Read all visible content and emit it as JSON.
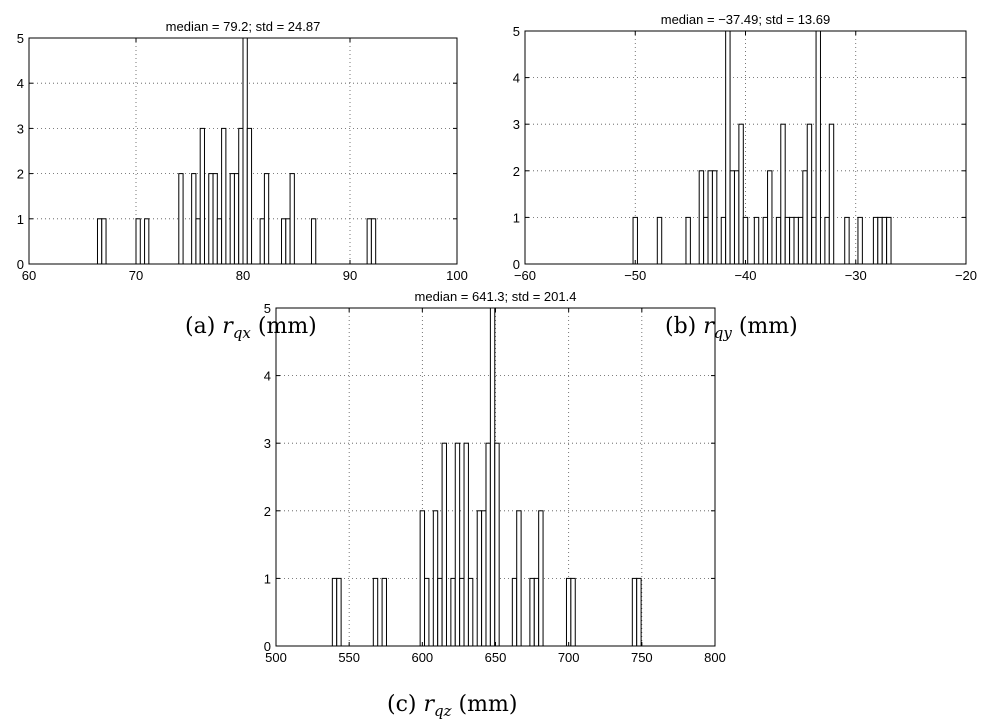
{
  "chart_data": [
    {
      "type": "bar",
      "title": "median = 79.2; std = 24.87",
      "caption": {
        "label": "(a)",
        "symbol": "r",
        "subscript": "qx",
        "unit": "(mm)"
      },
      "xlim": [
        60,
        100
      ],
      "ylim": [
        0,
        5
      ],
      "xticks": [
        "60",
        "70",
        "80",
        "90",
        "100"
      ],
      "yticks": [
        "0",
        "1",
        "2",
        "3",
        "4",
        "5"
      ],
      "grid": true,
      "bin_width": 0.4,
      "bins": [
        {
          "x": 66.6,
          "count": 1
        },
        {
          "x": 67.0,
          "count": 1
        },
        {
          "x": 70.2,
          "count": 1
        },
        {
          "x": 71.0,
          "count": 1
        },
        {
          "x": 74.2,
          "count": 2
        },
        {
          "x": 75.4,
          "count": 2
        },
        {
          "x": 75.8,
          "count": 1
        },
        {
          "x": 76.2,
          "count": 3
        },
        {
          "x": 77.0,
          "count": 2
        },
        {
          "x": 77.4,
          "count": 2
        },
        {
          "x": 77.8,
          "count": 1
        },
        {
          "x": 78.2,
          "count": 3
        },
        {
          "x": 79.0,
          "count": 2
        },
        {
          "x": 79.4,
          "count": 2
        },
        {
          "x": 79.8,
          "count": 3
        },
        {
          "x": 80.2,
          "count": 5
        },
        {
          "x": 80.6,
          "count": 3
        },
        {
          "x": 81.8,
          "count": 1
        },
        {
          "x": 82.2,
          "count": 2
        },
        {
          "x": 83.8,
          "count": 1
        },
        {
          "x": 84.2,
          "count": 1
        },
        {
          "x": 84.6,
          "count": 2
        },
        {
          "x": 86.6,
          "count": 1
        },
        {
          "x": 91.8,
          "count": 1
        },
        {
          "x": 92.2,
          "count": 1
        }
      ]
    },
    {
      "type": "bar",
      "title": "median = −37.49; std = 13.69",
      "caption": {
        "label": "(b)",
        "symbol": "r",
        "subscript": "qy",
        "unit": "(mm)"
      },
      "xlim": [
        -60,
        -20
      ],
      "ylim": [
        0,
        5
      ],
      "xticks": [
        "−60",
        "−50",
        "−40",
        "−30",
        "−20"
      ],
      "yticks": [
        "0",
        "1",
        "2",
        "3",
        "4",
        "5"
      ],
      "grid": true,
      "bin_width": 0.4,
      "bins": [
        {
          "x": -50.0,
          "count": 1
        },
        {
          "x": -47.8,
          "count": 1
        },
        {
          "x": -45.2,
          "count": 1
        },
        {
          "x": -44.0,
          "count": 2
        },
        {
          "x": -43.6,
          "count": 1
        },
        {
          "x": -43.2,
          "count": 2
        },
        {
          "x": -42.8,
          "count": 2
        },
        {
          "x": -42.0,
          "count": 1
        },
        {
          "x": -41.6,
          "count": 5
        },
        {
          "x": -41.2,
          "count": 2
        },
        {
          "x": -40.8,
          "count": 2
        },
        {
          "x": -40.4,
          "count": 3
        },
        {
          "x": -40.0,
          "count": 1
        },
        {
          "x": -39.0,
          "count": 1
        },
        {
          "x": -38.2,
          "count": 1
        },
        {
          "x": -37.8,
          "count": 2
        },
        {
          "x": -37.0,
          "count": 1
        },
        {
          "x": -36.6,
          "count": 3
        },
        {
          "x": -36.2,
          "count": 1
        },
        {
          "x": -35.8,
          "count": 1
        },
        {
          "x": -35.4,
          "count": 1
        },
        {
          "x": -35.0,
          "count": 1
        },
        {
          "x": -34.6,
          "count": 2
        },
        {
          "x": -34.2,
          "count": 3
        },
        {
          "x": -33.8,
          "count": 1
        },
        {
          "x": -33.4,
          "count": 5
        },
        {
          "x": -32.6,
          "count": 1
        },
        {
          "x": -32.2,
          "count": 3
        },
        {
          "x": -30.8,
          "count": 1
        },
        {
          "x": -29.6,
          "count": 1
        },
        {
          "x": -28.2,
          "count": 1
        },
        {
          "x": -27.8,
          "count": 1
        },
        {
          "x": -27.4,
          "count": 1
        },
        {
          "x": -27.0,
          "count": 1
        }
      ]
    },
    {
      "type": "bar",
      "title": "median = 641.3; std = 201.4",
      "caption": {
        "label": "(c)",
        "symbol": "r",
        "subscript": "qz",
        "unit": "(mm)"
      },
      "xlim": [
        500,
        800
      ],
      "ylim": [
        0,
        5
      ],
      "xticks": [
        "500",
        "550",
        "600",
        "650",
        "700",
        "750",
        "800"
      ],
      "yticks": [
        "0",
        "1",
        "2",
        "3",
        "4",
        "5"
      ],
      "grid": true,
      "bin_width": 3,
      "bins": [
        {
          "x": 540,
          "count": 1
        },
        {
          "x": 543,
          "count": 1
        },
        {
          "x": 568,
          "count": 1
        },
        {
          "x": 574,
          "count": 1
        },
        {
          "x": 600,
          "count": 2
        },
        {
          "x": 603,
          "count": 1
        },
        {
          "x": 609,
          "count": 2
        },
        {
          "x": 612,
          "count": 1
        },
        {
          "x": 615,
          "count": 3
        },
        {
          "x": 621,
          "count": 1
        },
        {
          "x": 624,
          "count": 3
        },
        {
          "x": 627,
          "count": 1
        },
        {
          "x": 630,
          "count": 3
        },
        {
          "x": 633,
          "count": 1
        },
        {
          "x": 639,
          "count": 2
        },
        {
          "x": 642,
          "count": 2
        },
        {
          "x": 645,
          "count": 3
        },
        {
          "x": 648,
          "count": 5
        },
        {
          "x": 651,
          "count": 3
        },
        {
          "x": 663,
          "count": 1
        },
        {
          "x": 666,
          "count": 2
        },
        {
          "x": 675,
          "count": 1
        },
        {
          "x": 678,
          "count": 1
        },
        {
          "x": 681,
          "count": 2
        },
        {
          "x": 700,
          "count": 1
        },
        {
          "x": 703,
          "count": 1
        },
        {
          "x": 745,
          "count": 1
        },
        {
          "x": 748,
          "count": 1
        }
      ]
    }
  ]
}
